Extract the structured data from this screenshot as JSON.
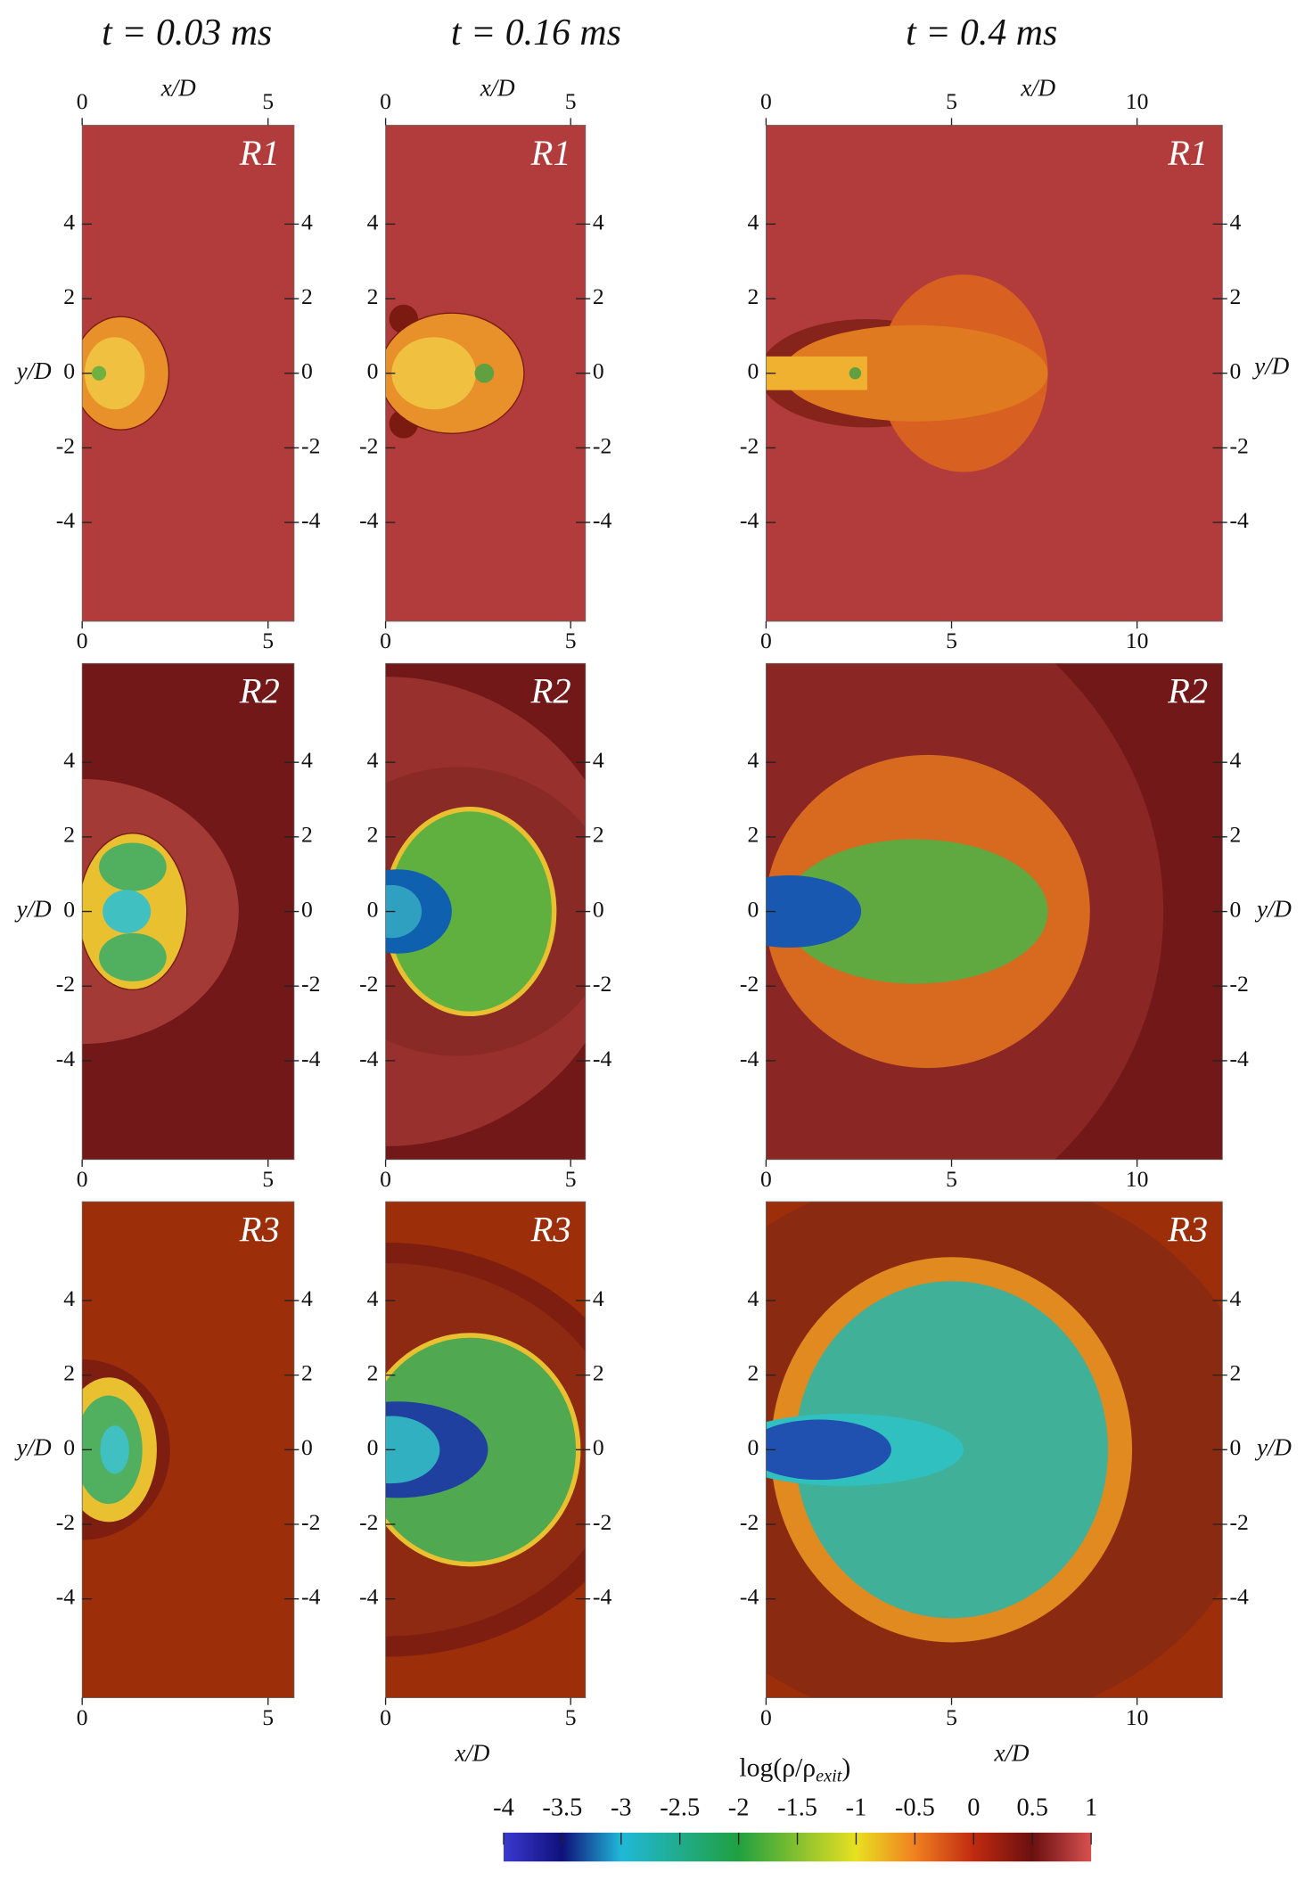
{
  "columns": [
    {
      "title": "t = 0.03 ms"
    },
    {
      "title": "t = 0.16 ms"
    },
    {
      "title": "t = 0.4 ms"
    }
  ],
  "axis_labels": {
    "x": "x/D",
    "y": "y/D"
  },
  "panels": [
    {
      "label": "R1",
      "xlim": [
        0,
        5.7
      ],
      "ylim": [
        -6.65,
        6.65
      ],
      "xticks": [
        0,
        5
      ],
      "yticks": [
        -4,
        -2,
        0,
        2,
        4
      ]
    },
    {
      "label": "R1",
      "xlim": [
        0,
        5.4
      ],
      "ylim": [
        -6.65,
        6.65
      ],
      "xticks": [
        0,
        5
      ],
      "yticks": [
        -4,
        -2,
        0,
        2,
        4
      ]
    },
    {
      "label": "R1",
      "xlim": [
        0,
        12.3
      ],
      "ylim": [
        -6.65,
        6.65
      ],
      "xticks": [
        0,
        5,
        10
      ],
      "yticks": [
        -4,
        -2,
        0,
        2,
        4
      ]
    },
    {
      "label": "R2",
      "xlim": [
        0,
        5.7
      ],
      "ylim": [
        -6.65,
        6.65
      ],
      "xticks": [
        0,
        5
      ],
      "yticks": [
        -4,
        -2,
        0,
        2,
        4
      ]
    },
    {
      "label": "R2",
      "xlim": [
        0,
        5.4
      ],
      "ylim": [
        -6.65,
        6.65
      ],
      "xticks": [
        0,
        5
      ],
      "yticks": [
        -4,
        -2,
        0,
        2,
        4
      ]
    },
    {
      "label": "R2",
      "xlim": [
        0,
        12.3
      ],
      "ylim": [
        -6.65,
        6.65
      ],
      "xticks": [
        0,
        5,
        10
      ],
      "yticks": [
        -4,
        -2,
        0,
        2,
        4
      ]
    },
    {
      "label": "R3",
      "xlim": [
        0,
        5.7
      ],
      "ylim": [
        -6.65,
        6.65
      ],
      "xticks": [
        0,
        5
      ],
      "yticks": [
        -4,
        -2,
        0,
        2,
        4
      ]
    },
    {
      "label": "R3",
      "xlim": [
        0,
        5.4
      ],
      "ylim": [
        -6.65,
        6.65
      ],
      "xticks": [
        0,
        5
      ],
      "yticks": [
        -4,
        -2,
        0,
        2,
        4
      ]
    },
    {
      "label": "R3",
      "xlim": [
        0,
        12.3
      ],
      "ylim": [
        -6.65,
        6.65
      ],
      "xticks": [
        0,
        5,
        10
      ],
      "yticks": [
        -4,
        -2,
        0,
        2,
        4
      ]
    }
  ],
  "colorbar": {
    "label": {
      "main": "log(ρ/ρ",
      "sub": "exit",
      "close": ")"
    },
    "lim": [
      -4,
      1
    ],
    "ticks": [
      -4,
      -3.5,
      -3,
      -2.5,
      -2,
      -1.5,
      -1,
      -0.5,
      0,
      0.5,
      1
    ]
  }
}
